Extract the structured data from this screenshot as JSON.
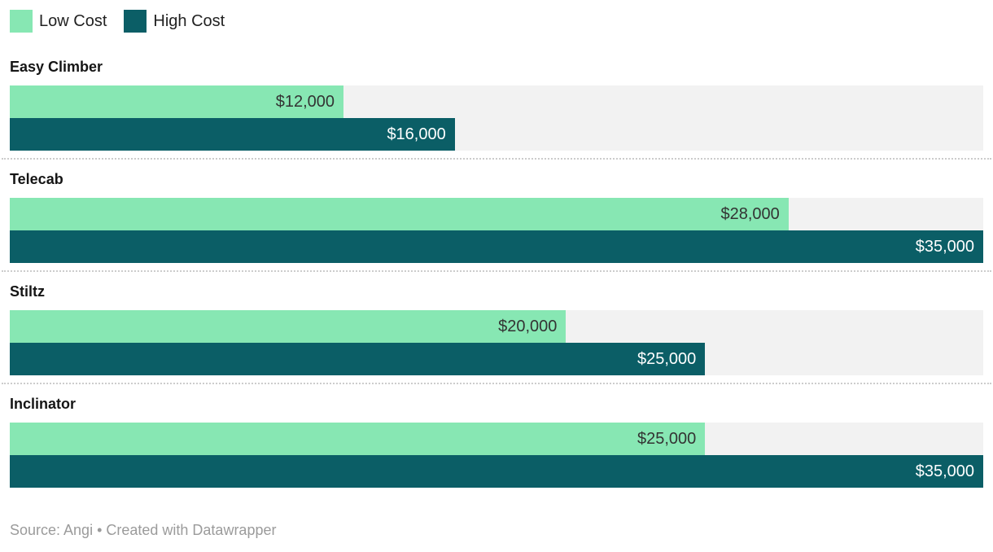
{
  "colors": {
    "low": "#87e7b3",
    "high": "#0b5e66",
    "track": "#f2f2f2",
    "separator": "#cccccc"
  },
  "chart_data": {
    "type": "bar",
    "orientation": "horizontal",
    "title": "",
    "categories": [
      "Easy Climber",
      "Telecab",
      "Stiltz",
      "Inclinator"
    ],
    "series": [
      {
        "name": "Low Cost",
        "color": "#87e7b3",
        "values": [
          12000,
          28000,
          20000,
          25000
        ],
        "value_labels": [
          "$12,000",
          "$28,000",
          "$20,000",
          "$25,000"
        ]
      },
      {
        "name": "High Cost",
        "color": "#0b5e66",
        "values": [
          16000,
          35000,
          25000,
          35000
        ],
        "value_labels": [
          "$16,000",
          "$35,000",
          "$25,000",
          "$35,000"
        ]
      }
    ],
    "xlim": [
      0,
      35000
    ],
    "axis_max": 35000,
    "grid": false,
    "legend_position": "top-left"
  },
  "footer": {
    "text": "Source: Angi • Created with Datawrapper"
  }
}
